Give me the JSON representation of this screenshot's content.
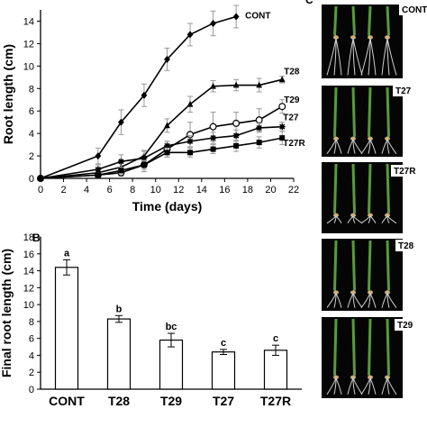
{
  "chart_data": [
    {
      "type": "line",
      "panel": "",
      "xlabel": "Time (days)",
      "ylabel": "Root length (cm)",
      "xlim": [
        0,
        22
      ],
      "ylim": [
        0,
        15
      ],
      "xticks": [
        0,
        2,
        4,
        6,
        8,
        10,
        12,
        14,
        16,
        18,
        20,
        22
      ],
      "yticks": [
        0,
        2,
        4,
        6,
        8,
        10,
        12,
        14
      ],
      "grid": false,
      "series": [
        {
          "name": "CONT",
          "marker": "diamond",
          "x": [
            0,
            5,
            7,
            9,
            11,
            13,
            15,
            17
          ],
          "y": [
            0,
            2.0,
            5.0,
            7.4,
            10.6,
            12.8,
            13.8,
            14.4
          ],
          "err": [
            0,
            0.7,
            1.1,
            1.0,
            1.0,
            1.0,
            1.1,
            1.0
          ]
        },
        {
          "name": "T28",
          "marker": "triangle",
          "x": [
            0,
            5,
            7,
            9,
            11,
            13,
            15,
            17,
            19,
            21
          ],
          "y": [
            0,
            0.5,
            1.0,
            2.0,
            4.7,
            6.6,
            8.2,
            8.3,
            8.3,
            8.8
          ],
          "err": [
            0,
            0.3,
            0.4,
            0.5,
            0.6,
            0.7,
            0.5,
            0.5,
            0.6,
            0.3
          ]
        },
        {
          "name": "T29",
          "marker": "circle-open",
          "x": [
            0,
            5,
            7,
            9,
            11,
            13,
            15,
            17,
            19,
            21
          ],
          "y": [
            0,
            0.3,
            0.5,
            1.2,
            2.6,
            3.9,
            4.6,
            4.9,
            5.2,
            6.4
          ],
          "err": [
            0,
            0.2,
            0.3,
            0.6,
            0.7,
            1.1,
            1.3,
            1.0,
            1.0,
            0.6
          ]
        },
        {
          "name": "T27",
          "marker": "star",
          "x": [
            0,
            5,
            7,
            9,
            11,
            13,
            15,
            17,
            19,
            21
          ],
          "y": [
            0,
            0.8,
            1.5,
            1.8,
            2.9,
            3.3,
            3.6,
            3.8,
            4.5,
            4.6
          ],
          "err": [
            0,
            0.4,
            0.6,
            0.6,
            0.4,
            0.5,
            0.5,
            0.5,
            0.4,
            0.4
          ]
        },
        {
          "name": "T27R",
          "marker": "square",
          "x": [
            0,
            5,
            7,
            9,
            11,
            13,
            15,
            17,
            19,
            21
          ],
          "y": [
            0,
            0.3,
            0.7,
            1.2,
            2.3,
            2.3,
            2.6,
            2.9,
            3.2,
            3.6
          ],
          "err": [
            0,
            0.2,
            0.3,
            0.4,
            0.4,
            0.4,
            0.4,
            0.5,
            0.5,
            0.6
          ]
        }
      ]
    },
    {
      "type": "bar",
      "panel": "B",
      "xlabel": "",
      "ylabel": "Final root length (cm)",
      "ylim": [
        0,
        18
      ],
      "yticks": [
        0,
        2,
        4,
        6,
        8,
        10,
        12,
        14,
        16,
        18
      ],
      "grid": false,
      "categories": [
        "CONT",
        "T28",
        "T29",
        "T27",
        "T27R"
      ],
      "values": [
        14.4,
        8.3,
        5.8,
        4.4,
        4.6
      ],
      "errors": [
        0.9,
        0.4,
        0.8,
        0.3,
        0.6
      ],
      "significance": [
        "a",
        "b",
        "bc",
        "c",
        "c"
      ]
    }
  ],
  "photo_panel": {
    "panel": "C",
    "labels": [
      "CONT",
      "T27",
      "T27R",
      "T28",
      "T29"
    ]
  }
}
